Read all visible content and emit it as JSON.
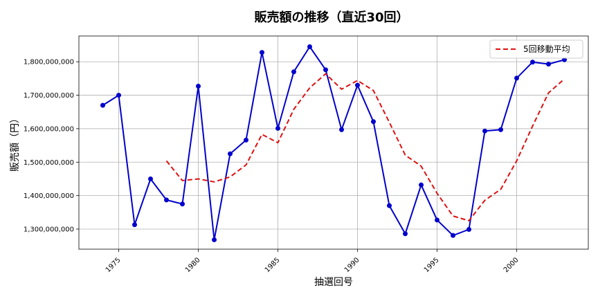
{
  "chart_data": {
    "type": "line",
    "title": "販売額の推移（直近30回）",
    "xlabel": "抽選回号",
    "ylabel": "販売額（円）",
    "x": [
      1974,
      1975,
      1976,
      1977,
      1978,
      1979,
      1980,
      1981,
      1982,
      1983,
      1984,
      1985,
      1986,
      1987,
      1988,
      1989,
      1990,
      1991,
      1992,
      1993,
      1994,
      1995,
      1996,
      1997,
      1998,
      1999,
      2000,
      2001,
      2002,
      2003
    ],
    "xticks": [
      1975,
      1980,
      1985,
      1990,
      1995,
      2000
    ],
    "xtick_labels": [
      "1975",
      "1980",
      "1985",
      "1990",
      "1995",
      "2000"
    ],
    "yticks": [
      1300000000,
      1400000000,
      1500000000,
      1600000000,
      1700000000,
      1800000000
    ],
    "ytick_labels": [
      "1,300,000,000",
      "1,400,000,000",
      "1,500,000,000",
      "1,600,000,000",
      "1,700,000,000",
      "1,800,000,000"
    ],
    "xlim": [
      1972.5,
      2004.5
    ],
    "ylim": [
      1240000000,
      1877000000
    ],
    "grid": true,
    "legend_position": "top-right",
    "series": [
      {
        "name": "",
        "style": "solid-with-markers",
        "color": "#0000cc",
        "values": [
          1670000000,
          1700000000,
          1313000000,
          1450000000,
          1387000000,
          1375000000,
          1727000000,
          1268000000,
          1525000000,
          1566000000,
          1828000000,
          1601000000,
          1770000000,
          1845000000,
          1776000000,
          1597000000,
          1730000000,
          1621000000,
          1370000000,
          1286000000,
          1432000000,
          1327000000,
          1281000000,
          1299000000,
          1593000000,
          1597000000,
          1751000000,
          1799000000,
          1793000000,
          1806000000
        ]
      },
      {
        "name": "5回移動平均",
        "style": "dashed",
        "color": "#dd1111",
        "values": [
          null,
          null,
          null,
          null,
          1504000000,
          1445000000,
          1450000000,
          1441000000,
          1456000000,
          1492000000,
          1583000000,
          1558000000,
          1658000000,
          1722000000,
          1764000000,
          1718000000,
          1744000000,
          1714000000,
          1619000000,
          1521000000,
          1488000000,
          1407000000,
          1339000000,
          1325000000,
          1386000000,
          1419000000,
          1504000000,
          1608000000,
          1707000000,
          1749000000
        ]
      }
    ]
  }
}
